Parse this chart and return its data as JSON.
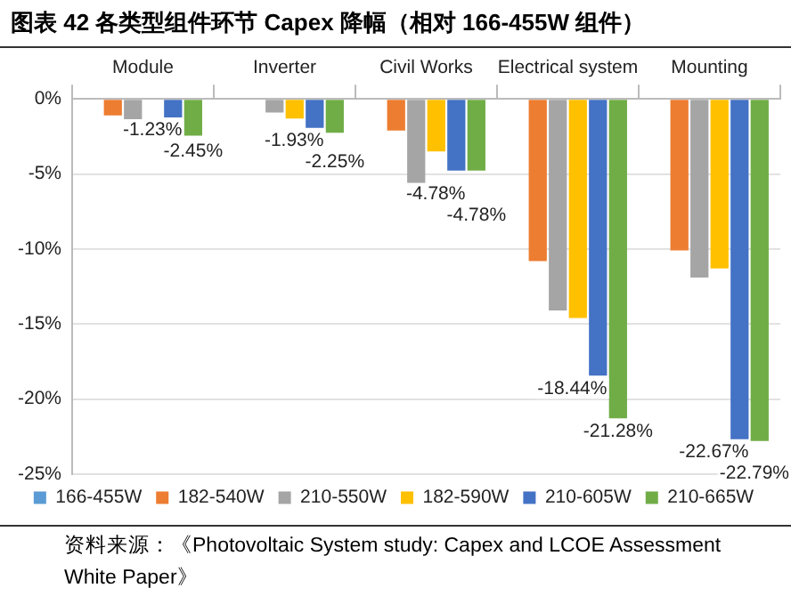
{
  "chart_data": {
    "type": "bar",
    "title": "图表 42 各类型组件环节 Capex 降幅（相对 166-455W 组件）",
    "categories": [
      "Module",
      "Inverter",
      "Civil Works",
      "Electrical system",
      "Mounting"
    ],
    "series": [
      {
        "name": "166-455W",
        "color": "#5b9bd5",
        "values": [
          0,
          0,
          0,
          0,
          0
        ]
      },
      {
        "name": "182-540W",
        "color": "#ed7d31",
        "values": [
          -1.1,
          0,
          -2.1,
          -10.8,
          -10.1
        ]
      },
      {
        "name": "210-550W",
        "color": "#a5a5a5",
        "values": [
          -1.4,
          -0.9,
          -5.6,
          -14.1,
          -11.9
        ]
      },
      {
        "name": "182-590W",
        "color": "#ffc000",
        "values": [
          0,
          -1.3,
          -3.5,
          -14.6,
          -11.3
        ]
      },
      {
        "name": "210-605W",
        "color": "#4472c4",
        "values": [
          -1.23,
          -1.93,
          -4.78,
          -18.44,
          -22.67
        ],
        "value_labels": [
          "-1.23%",
          "-1.93%",
          "-4.78%",
          "-18.44%",
          "-22.67%"
        ]
      },
      {
        "name": "210-665W",
        "color": "#70ad47",
        "values": [
          -2.45,
          -2.25,
          -4.78,
          -21.28,
          -22.79
        ],
        "value_labels": [
          "-2.45%",
          "-2.25%",
          "-4.78%",
          "-21.28%",
          "-22.79%"
        ]
      }
    ],
    "ylim": [
      -25,
      0
    ],
    "yticks": [
      {
        "value": 0,
        "label": "0%"
      },
      {
        "value": -5,
        "label": "-5%"
      },
      {
        "value": -10,
        "label": "-10%"
      },
      {
        "value": -15,
        "label": "-15%"
      },
      {
        "value": -20,
        "label": "-20%"
      },
      {
        "value": -25,
        "label": "-25%"
      }
    ],
    "grid": "y",
    "legend": "bottom",
    "annotations": [
      "资料来源：《Photovoltaic System study: Capex and LCOE Assessment White Paper》"
    ]
  }
}
